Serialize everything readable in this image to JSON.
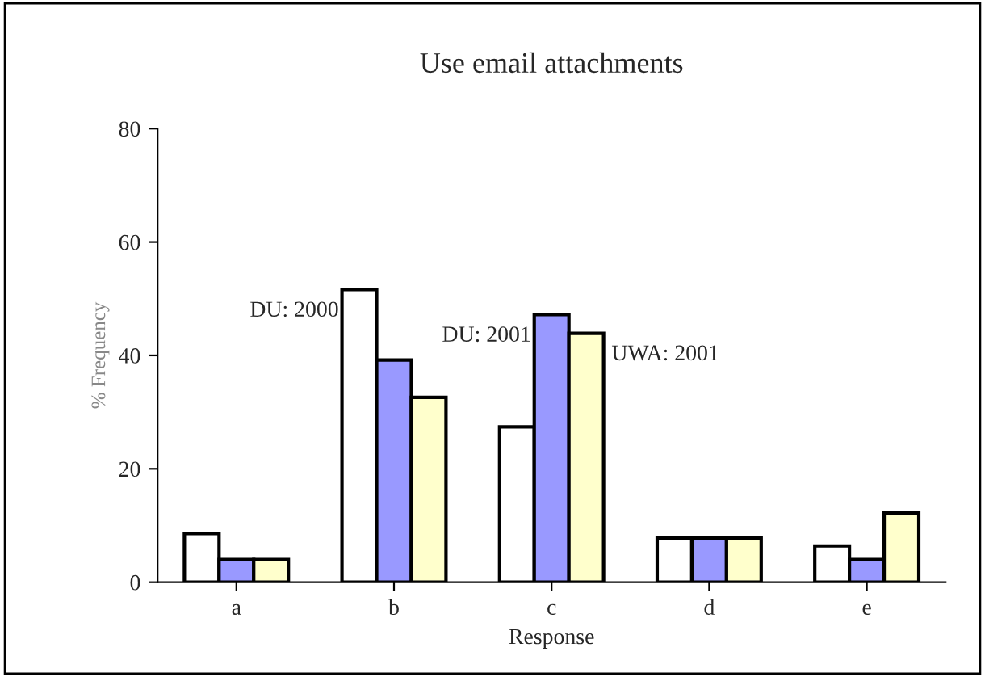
{
  "chart_data": {
    "type": "bar",
    "title": "Use email attachments",
    "xlabel": "Response",
    "ylabel": "% Frequency",
    "categories": [
      "a",
      "b",
      "c",
      "d",
      "e"
    ],
    "series": [
      {
        "name": "DU: 2000",
        "color": "#ffffff",
        "values": [
          8.6,
          51.6,
          27.4,
          7.8,
          6.4
        ]
      },
      {
        "name": "DU: 2001",
        "color": "#9999ff",
        "values": [
          4,
          39.2,
          47.2,
          7.8,
          4
        ]
      },
      {
        "name": "UWA: 2001",
        "color": "#ffffcc",
        "values": [
          4,
          32.6,
          43.9,
          7.8,
          12.2
        ]
      }
    ],
    "ylim": [
      0,
      80
    ],
    "yticks": [
      0,
      20,
      40,
      60,
      80
    ],
    "grid": false,
    "legend": false
  }
}
